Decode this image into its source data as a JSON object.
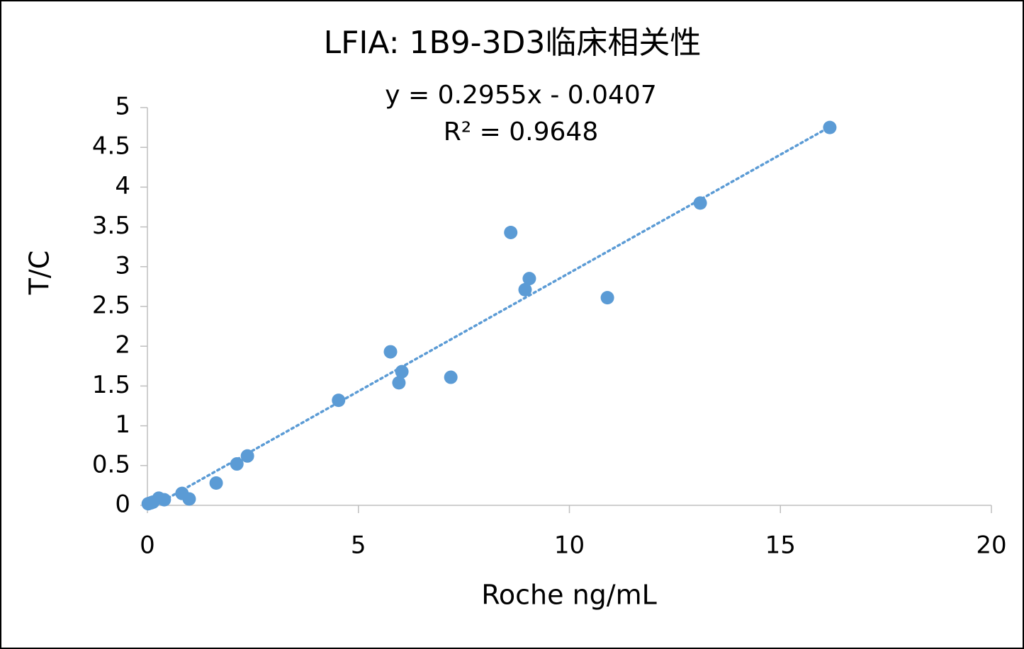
{
  "chart_data": {
    "type": "scatter",
    "title": "LFIA: 1B9-3D3临床相关性",
    "equation": "y = 0.2955x - 0.0407",
    "r_squared": "R² = 0.9648",
    "x_label": "Roche ng/mL",
    "y_label": "T/C",
    "trendline": "linear",
    "color": "#5b9bd5",
    "xlim": [
      0,
      20
    ],
    "xticks": [
      0,
      5,
      10,
      15,
      20
    ],
    "ylim": [
      0,
      5
    ],
    "yticks": [
      0,
      0.5,
      1,
      1.5,
      2,
      2.5,
      3,
      3.5,
      4,
      4.5,
      5
    ],
    "grid": false,
    "x": [
      16.17,
      13.1,
      8.61,
      9.05,
      8.95,
      10.9,
      5.76,
      6.03,
      5.96,
      7.19,
      4.53,
      2.37,
      2.12,
      1.63,
      0.82,
      0.99,
      0.4,
      0.27,
      0.13,
      0.02,
      0.08
    ],
    "values": [
      4.75,
      3.8,
      3.43,
      2.85,
      2.71,
      2.61,
      1.93,
      1.68,
      1.54,
      1.61,
      1.32,
      0.62,
      0.52,
      0.28,
      0.15,
      0.08,
      0.07,
      0.09,
      0.04,
      0.02,
      0.03
    ]
  }
}
